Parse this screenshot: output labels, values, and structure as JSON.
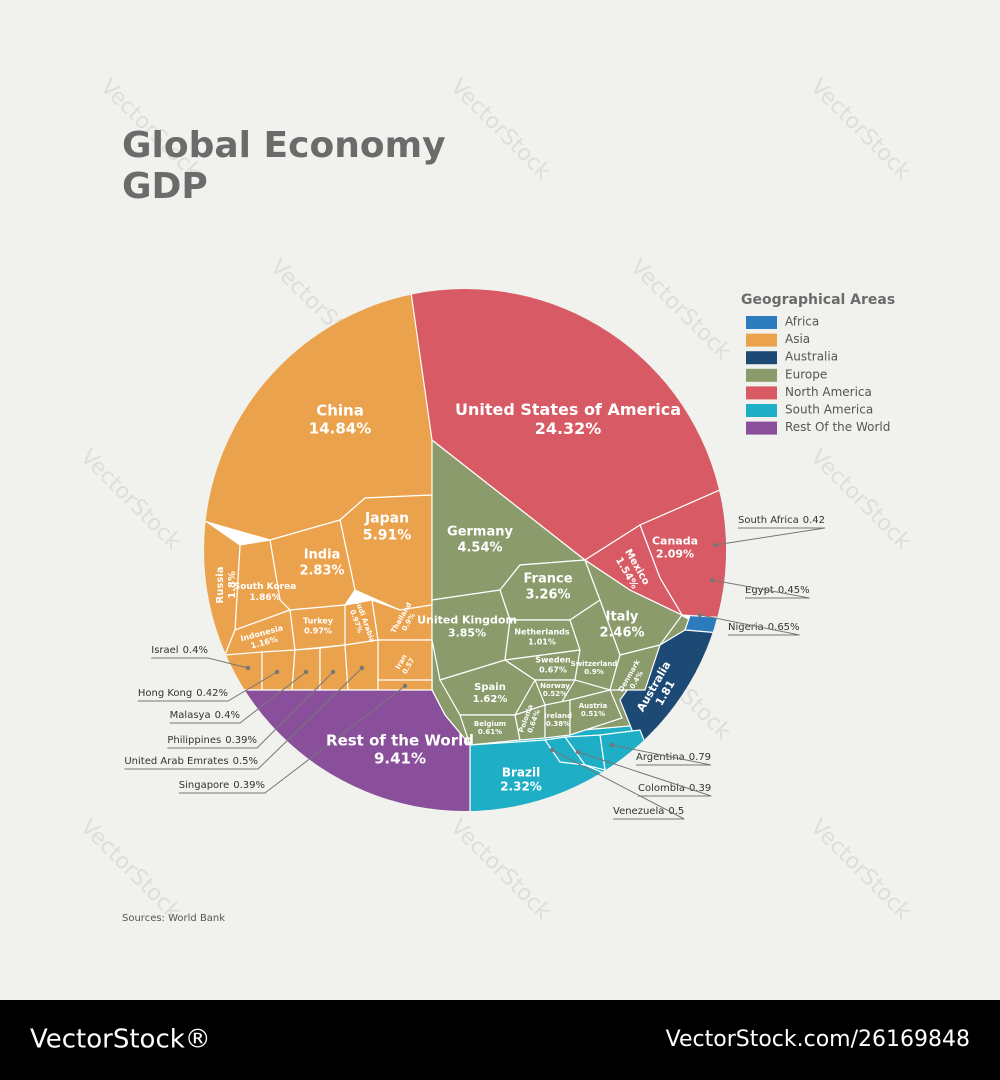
{
  "chart_data": {
    "type": "voronoi-treemap",
    "title": "Global Economy",
    "subtitle": "GDP",
    "legend_title": "Geographical Areas",
    "source": "Sources: World Bank",
    "watermark": "VectorStock",
    "footer_brand": "VectorStock®",
    "footer_id": "VectorStock.com/26169848",
    "series": [
      {
        "name": "Africa",
        "color": "#2b7bbd",
        "categories": [
          "South Africa",
          "Egypt",
          "Nigeria"
        ],
        "values": [
          0.42,
          0.45,
          0.65
        ],
        "value_labels": [
          "0.42",
          "0.45%",
          "0.65%"
        ]
      },
      {
        "name": "Asia",
        "color": "#eba24c",
        "categories": [
          "China",
          "Japan",
          "India",
          "South Korea",
          "Russia",
          "Indonesia",
          "Turkey",
          "Saudi Arabia",
          "Thailand",
          "Iran",
          "Israel",
          "Hong Kong",
          "Malasya",
          "Philippines",
          "United Arab Emrates",
          "Singapore"
        ],
        "values": [
          14.84,
          5.91,
          2.83,
          1.86,
          1.8,
          1.16,
          0.97,
          0.97,
          0.9,
          0.57,
          0.4,
          0.42,
          0.4,
          0.39,
          0.5,
          0.39
        ],
        "value_labels": [
          "14.84%",
          "5.91%",
          "2.83%",
          "1.86%",
          "1.8%",
          "1.16%",
          "0.97%",
          "0.97%",
          "0.9%",
          "0.57",
          "0.4%",
          "0.42%",
          "0.4%",
          "0.39%",
          "0.5%",
          "0.39%"
        ]
      },
      {
        "name": "Australia",
        "color": "#1d4a75",
        "categories": [
          "Australia"
        ],
        "values": [
          1.81
        ],
        "value_labels": [
          "1.81"
        ]
      },
      {
        "name": "Europe",
        "color": "#8b9b6b",
        "categories": [
          "Germany",
          "France",
          "United Kingdom",
          "Italy",
          "Netherlands",
          "Spain",
          "Sweden",
          "Switzerland",
          "Norway",
          "Denmark",
          "Belgium",
          "Polonia",
          "Ireland",
          "Austria"
        ],
        "values": [
          4.54,
          3.26,
          3.85,
          2.46,
          1.01,
          1.62,
          0.67,
          0.9,
          0.52,
          0.4,
          0.61,
          0.64,
          0.38,
          0.51
        ],
        "value_labels": [
          "4.54%",
          "3.26%",
          "3.85%",
          "2.46%",
          "1.01%",
          "1.62%",
          "0.67%",
          "0.9%",
          "0.52%",
          "0.4%",
          "0.61%",
          "0.64%",
          "0.38%",
          "0.51%"
        ]
      },
      {
        "name": "North America",
        "color": "#d75a64",
        "categories": [
          "United States of America",
          "Canada",
          "Mexico"
        ],
        "values": [
          24.32,
          2.09,
          1.54
        ],
        "value_labels": [
          "24.32%",
          "2.09%",
          "1.54%"
        ]
      },
      {
        "name": "South America",
        "color": "#1eaec6",
        "categories": [
          "Brazil",
          "Argentina",
          "Colombia",
          "Venezuela"
        ],
        "values": [
          2.32,
          0.79,
          0.39,
          0.5
        ],
        "value_labels": [
          "2.32%",
          "0.79",
          "0.39",
          "0.5"
        ]
      },
      {
        "name": "Rest Of the World",
        "color": "#8a4f9b",
        "categories": [
          "Rest of the World"
        ],
        "values": [
          9.41
        ],
        "value_labels": [
          "9.41%"
        ]
      }
    ]
  }
}
